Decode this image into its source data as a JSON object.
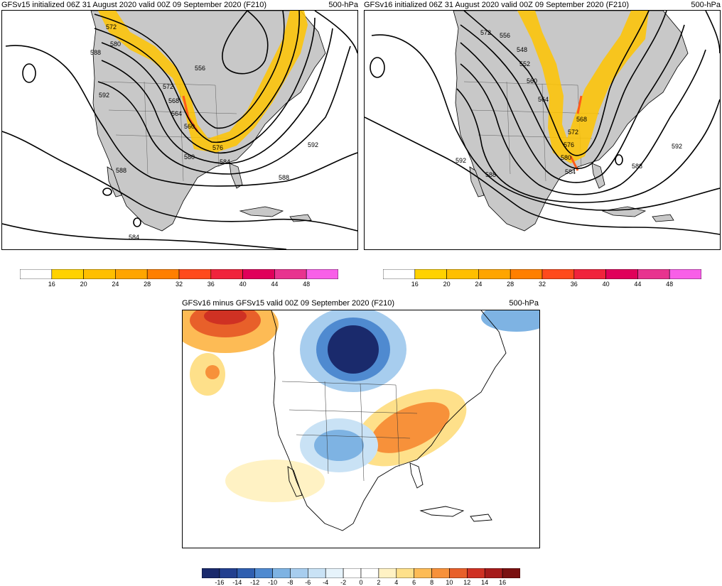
{
  "panels": {
    "gfsv15": {
      "title": "GFSv15 initialized 06Z 31 August 2020 valid 00Z 09 September 2020 (F210)",
      "level": "500-hPa",
      "contour_labels": [
        "572",
        "580",
        "588",
        "556",
        "592",
        "572",
        "568",
        "564",
        "560",
        "576",
        "580",
        "584",
        "588",
        "592",
        "588",
        "584"
      ]
    },
    "gfsv16": {
      "title": "GFSv16 initialized 06Z 31 August 2020 valid 00Z 09 September 2020 (F210)",
      "level": "500-hPa",
      "contour_labels": [
        "572",
        "556",
        "548",
        "552",
        "560",
        "564",
        "568",
        "572",
        "576",
        "580",
        "584",
        "592",
        "588",
        "592",
        "588"
      ]
    },
    "diff": {
      "title": "GFSv16 minus GFSv15 valid 00Z 09 September 2020 (F210)",
      "level": "500-hPa"
    }
  },
  "wind_colorbar": {
    "labels": [
      "16",
      "20",
      "24",
      "28",
      "32",
      "36",
      "40",
      "44",
      "48"
    ],
    "colors": [
      "#ffffff",
      "#ffd200",
      "#ffbf00",
      "#ffa500",
      "#ff7f00",
      "#ff4a1c",
      "#f0233c",
      "#e0005a",
      "#e8338f",
      "#f85fe8"
    ]
  },
  "diff_colorbar": {
    "labels": [
      "-16",
      "-14",
      "-12",
      "-10",
      "-8",
      "-6",
      "-4",
      "-2",
      "0",
      "2",
      "4",
      "6",
      "8",
      "10",
      "12",
      "14",
      "16"
    ],
    "colors": [
      "#1a2a6c",
      "#223f8f",
      "#2f5fb0",
      "#4f8ad0",
      "#7eb3e3",
      "#a7cdee",
      "#c9e2f5",
      "#e6f3fb",
      "#ffffff",
      "#ffffff",
      "#fff2c4",
      "#fee08a",
      "#fdbb55",
      "#f7913a",
      "#e8602a",
      "#cf3123",
      "#a61b1b",
      "#7a1010"
    ]
  }
}
